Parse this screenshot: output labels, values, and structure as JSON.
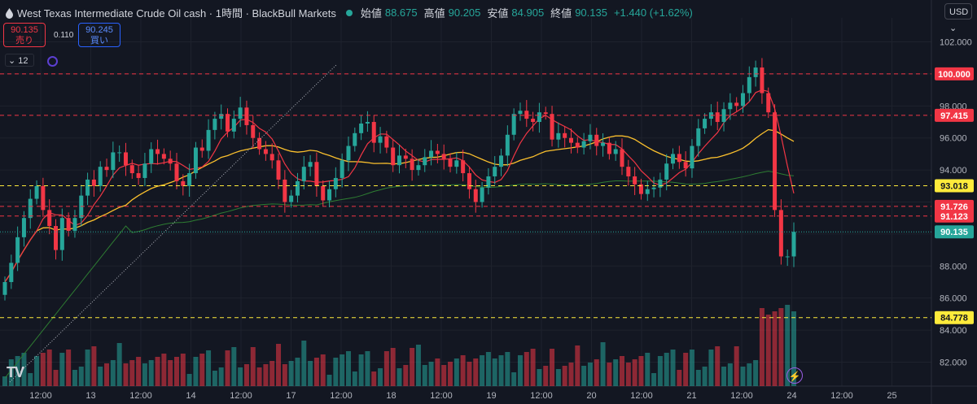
{
  "header": {
    "title": "West Texas Intermediate Crude Oil cash · 1時間 · BlackBull Markets",
    "open_label": "始値",
    "open": "88.675",
    "high_label": "高値",
    "high": "90.205",
    "low_label": "安値",
    "low": "84.905",
    "close_label": "終値",
    "close": "90.135",
    "change": "+1.440 (+1.62%)"
  },
  "trade": {
    "sell_price": "90.135",
    "sell_label": "売り",
    "spread": "0.110",
    "buy_price": "90.245",
    "buy_label": "買い"
  },
  "indicator_count": "12",
  "currency": "USD",
  "logo": "TV",
  "chart_data": {
    "type": "candlestick",
    "title": "West Texas Intermediate Crude Oil cash",
    "timeframe": "1時間",
    "yrange": [
      80.5,
      103.5
    ],
    "y_ticks": [
      "102.000",
      "98.000",
      "96.000",
      "94.000",
      "88.000",
      "86.000",
      "84.000",
      "82.000"
    ],
    "x_ticks": [
      "12:00",
      "13",
      "12:00",
      "14",
      "12:00",
      "17",
      "12:00",
      "18",
      "12:00",
      "19",
      "12:00",
      "20",
      "12:00",
      "21",
      "12:00",
      "24",
      "12:00",
      "25"
    ],
    "x_tick_positions": [
      0,
      0.5,
      1,
      1.5,
      2,
      2.5,
      3,
      3.5,
      4,
      4.5,
      5,
      5.5,
      6,
      6.5,
      7,
      7.5,
      8,
      8.5
    ],
    "price_lines": [
      {
        "value": 100.0,
        "label": "100.000",
        "color": "#f23645",
        "style": "dash"
      },
      {
        "value": 97.415,
        "label": "97.415",
        "color": "#f23645",
        "style": "dash"
      },
      {
        "value": 93.018,
        "label": "93.018",
        "color": "#ffeb3b",
        "style": "dash"
      },
      {
        "value": 91.726,
        "label": "91.726",
        "color": "#f23645",
        "style": "dash"
      },
      {
        "value": 91.123,
        "label": "91.123",
        "color": "#f23645",
        "style": "dash"
      },
      {
        "value": 90.135,
        "label": "90.135",
        "color": "#26a69a",
        "style": "dot"
      },
      {
        "value": 84.778,
        "label": "84.778",
        "color": "#ffeb3b",
        "style": "dash"
      }
    ],
    "closes": [
      87.0,
      88.2,
      89.8,
      91.0,
      92.2,
      93.0,
      91.5,
      90.5,
      89.0,
      91.0,
      90.2,
      91.0,
      92.4,
      93.4,
      93.0,
      94.2,
      94.0,
      95.1,
      95.1,
      94.3,
      93.8,
      93.5,
      94.4,
      95.3,
      95.0,
      94.7,
      94.4,
      93.3,
      93.0,
      93.8,
      95.4,
      95.2,
      96.5,
      97.2,
      97.5,
      96.4,
      97.2,
      97.9,
      96.8,
      96.0,
      95.3,
      95.0,
      94.6,
      93.4,
      92.0,
      92.4,
      93.3,
      94.2,
      94.5,
      93.0,
      92.1,
      92.8,
      93.5,
      94.6,
      95.5,
      96.3,
      96.9,
      97.0,
      95.7,
      96.1,
      95.4,
      94.3,
      94.9,
      94.7,
      94.0,
      94.3,
      94.8,
      95.2,
      95.0,
      94.7,
      94.2,
      94.6,
      93.8,
      92.8,
      92.0,
      92.9,
      93.6,
      94.2,
      94.9,
      96.2,
      97.5,
      97.7,
      97.2,
      97.0,
      97.6,
      97.5,
      95.9,
      96.3,
      96.0,
      95.7,
      95.4,
      95.8,
      96.2,
      95.5,
      95.7,
      95.0,
      95.3,
      94.2,
      93.6,
      93.1,
      92.5,
      92.8,
      92.9,
      93.4,
      94.4,
      95.0,
      94.5,
      94.1,
      95.5,
      96.6,
      97.2,
      97.6,
      97.0,
      97.8,
      98.2,
      98.0,
      98.8,
      99.8,
      100.4,
      98.8,
      97.6,
      91.5,
      88.6,
      88.6,
      90.135
    ],
    "sma_fast_color": "#f23645",
    "sma_mid_color": "#fbc02d",
    "sma_slow_color": "#2e7d32",
    "volume_colors": {
      "up": "#26a69a",
      "down": "#f23645"
    }
  }
}
